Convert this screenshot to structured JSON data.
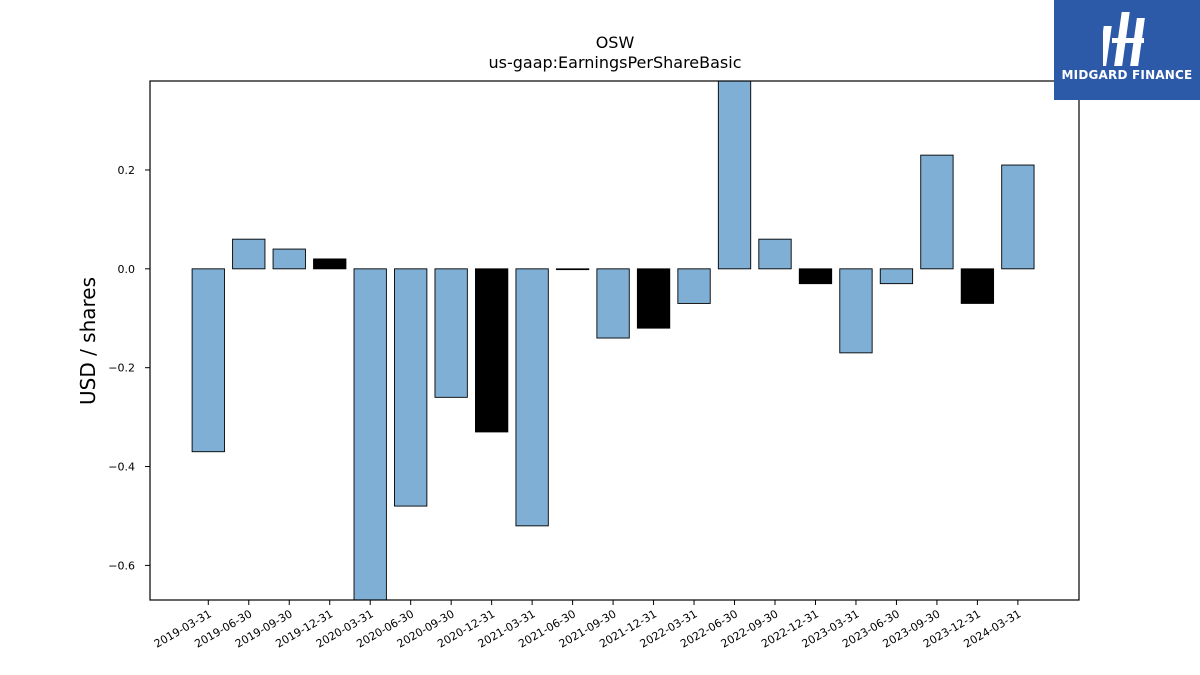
{
  "chart_data": {
    "type": "bar",
    "title": "OSW",
    "subtitle": "us-gaap:EarningsPerShareBasic",
    "xlabel": "",
    "ylabel": "USD / shares",
    "ylim": [
      -0.67,
      0.38
    ],
    "yticks": [
      0.2,
      0.0,
      -0.2,
      -0.4,
      -0.6
    ],
    "ytick_labels": [
      "0.2",
      "0.0",
      "−0.2",
      "−0.4",
      "−0.6"
    ],
    "grid": false,
    "categories": [
      "2019-03-31",
      "2019-06-30",
      "2019-09-30",
      "2019-12-31",
      "2020-03-31",
      "2020-06-30",
      "2020-09-30",
      "2020-12-31",
      "2021-03-31",
      "2021-06-30",
      "2021-09-30",
      "2021-12-31",
      "2022-03-31",
      "2022-06-30",
      "2022-09-30",
      "2022-12-31",
      "2023-03-31",
      "2023-06-30",
      "2023-09-30",
      "2023-12-31",
      "2024-03-31"
    ],
    "values": [
      -0.37,
      0.06,
      0.04,
      0.02,
      -0.67,
      -0.48,
      -0.26,
      -0.33,
      -0.52,
      0.0,
      -0.14,
      -0.12,
      -0.07,
      0.38,
      0.06,
      -0.03,
      -0.17,
      -0.03,
      0.23,
      -0.07,
      0.21
    ],
    "bar_colors": [
      "#7fafd4",
      "#7fafd4",
      "#7fafd4",
      "#000000",
      "#7fafd4",
      "#7fafd4",
      "#7fafd4",
      "#000000",
      "#7fafd4",
      "#7fafd4",
      "#7fafd4",
      "#000000",
      "#7fafd4",
      "#7fafd4",
      "#7fafd4",
      "#000000",
      "#7fafd4",
      "#7fafd4",
      "#7fafd4",
      "#000000",
      "#7fafd4"
    ]
  },
  "logo": {
    "text": "MIDGARD FINANCE",
    "background": "#2d5aa8"
  }
}
